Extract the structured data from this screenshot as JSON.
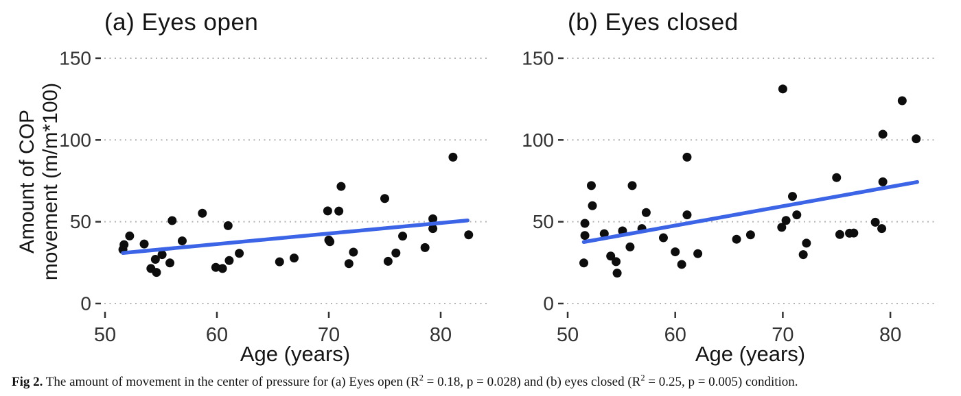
{
  "figure": {
    "ylabel_lines": [
      "Amount of COP",
      "movement (m/m*100)"
    ],
    "caption_parts": [
      {
        "text": "Fig 2.",
        "bold": true,
        "sup": false
      },
      {
        "text": "  The amount of movement in the center of pressure for (a) Eyes open (R",
        "bold": false,
        "sup": false
      },
      {
        "text": "2",
        "bold": false,
        "sup": true
      },
      {
        "text": " = 0.18, p = 0.028) and (b) eyes closed (R",
        "bold": false,
        "sup": false
      },
      {
        "text": "2",
        "bold": false,
        "sup": true
      },
      {
        "text": " = 0.25, p = 0.005) condition.",
        "bold": false,
        "sup": false
      }
    ]
  },
  "colors": {
    "point": "#0d0d0d",
    "trend_line": "#3c64e6",
    "grid": "#b3b3b3",
    "tick_text": "#333333",
    "tick_mark": "#333333",
    "background": "#ffffff"
  },
  "chart_data": [
    {
      "type": "scatter",
      "title": "(a) Eyes open",
      "xlabel": "Age (years)",
      "ylabel": "Amount of COP movement (m/m*100)",
      "xlim": [
        49.9,
        84.1
      ],
      "ylim": [
        -5,
        157
      ],
      "xticks": [
        50,
        60,
        70,
        80
      ],
      "yticks": [
        0,
        50,
        100,
        150
      ],
      "grid": "horizontal dotted",
      "legend": "none",
      "stats": {
        "r2": 0.18,
        "p": 0.028
      },
      "trend": {
        "x1": 51.6,
        "y1": 30.9,
        "x2": 82.4,
        "y2": 50.8
      },
      "points": [
        [
          51.6,
          33.0
        ],
        [
          51.7,
          36.0
        ],
        [
          52.2,
          41.3
        ],
        [
          53.5,
          36.4
        ],
        [
          54.1,
          21.4
        ],
        [
          54.5,
          27.0
        ],
        [
          54.6,
          19.0
        ],
        [
          55.1,
          29.9
        ],
        [
          55.8,
          24.8
        ],
        [
          56.0,
          50.7
        ],
        [
          56.9,
          38.3
        ],
        [
          58.7,
          55.2
        ],
        [
          59.9,
          22.1
        ],
        [
          60.5,
          21.4
        ],
        [
          61.0,
          47.6
        ],
        [
          61.1,
          26.3
        ],
        [
          62.0,
          30.7
        ],
        [
          65.6,
          25.5
        ],
        [
          66.9,
          27.8
        ],
        [
          69.9,
          56.6
        ],
        [
          70.0,
          38.8
        ],
        [
          70.1,
          37.8
        ],
        [
          70.9,
          56.5
        ],
        [
          71.1,
          71.6
        ],
        [
          71.8,
          24.4
        ],
        [
          72.2,
          31.4
        ],
        [
          75.0,
          64.2
        ],
        [
          75.3,
          25.8
        ],
        [
          76.0,
          30.9
        ],
        [
          76.6,
          41.2
        ],
        [
          78.6,
          34.2
        ],
        [
          79.3,
          51.8
        ],
        [
          79.3,
          45.8
        ],
        [
          81.1,
          89.5
        ],
        [
          82.5,
          42.0
        ]
      ]
    },
    {
      "type": "scatter",
      "title": "(b) Eyes closed",
      "xlabel": "Age (years)",
      "ylabel": "Amount of COP movement (m/m*100)",
      "xlim": [
        49.9,
        84.1
      ],
      "ylim": [
        -5,
        157
      ],
      "xticks": [
        50,
        60,
        70,
        80
      ],
      "yticks": [
        0,
        50,
        100,
        150
      ],
      "grid": "horizontal dotted",
      "legend": "none",
      "stats": {
        "r2": 0.25,
        "p": 0.005
      },
      "trend": {
        "x1": 51.5,
        "y1": 37.6,
        "x2": 82.5,
        "y2": 74.3
      },
      "points": [
        [
          51.5,
          24.8
        ],
        [
          51.6,
          49.0
        ],
        [
          51.6,
          41.6
        ],
        [
          52.2,
          72.1
        ],
        [
          52.3,
          59.8
        ],
        [
          53.4,
          42.7
        ],
        [
          54.0,
          29.0
        ],
        [
          54.5,
          25.6
        ],
        [
          54.6,
          18.6
        ],
        [
          55.1,
          44.4
        ],
        [
          55.8,
          34.6
        ],
        [
          56.0,
          72.1
        ],
        [
          56.9,
          45.8
        ],
        [
          57.3,
          55.6
        ],
        [
          58.9,
          40.2
        ],
        [
          60.0,
          31.6
        ],
        [
          60.6,
          23.9
        ],
        [
          61.1,
          54.2
        ],
        [
          61.1,
          89.5
        ],
        [
          62.1,
          30.5
        ],
        [
          65.7,
          39.3
        ],
        [
          67.0,
          42.0
        ],
        [
          69.9,
          46.6
        ],
        [
          70.0,
          131.2
        ],
        [
          70.3,
          50.8
        ],
        [
          70.9,
          65.5
        ],
        [
          71.3,
          54.2
        ],
        [
          71.9,
          29.9
        ],
        [
          72.2,
          36.9
        ],
        [
          75.0,
          77.0
        ],
        [
          75.3,
          42.2
        ],
        [
          76.2,
          43.0
        ],
        [
          76.6,
          43.1
        ],
        [
          78.6,
          49.7
        ],
        [
          79.2,
          45.8
        ],
        [
          79.3,
          103.5
        ],
        [
          79.3,
          74.4
        ],
        [
          81.1,
          124.0
        ],
        [
          82.4,
          100.7
        ]
      ]
    }
  ]
}
